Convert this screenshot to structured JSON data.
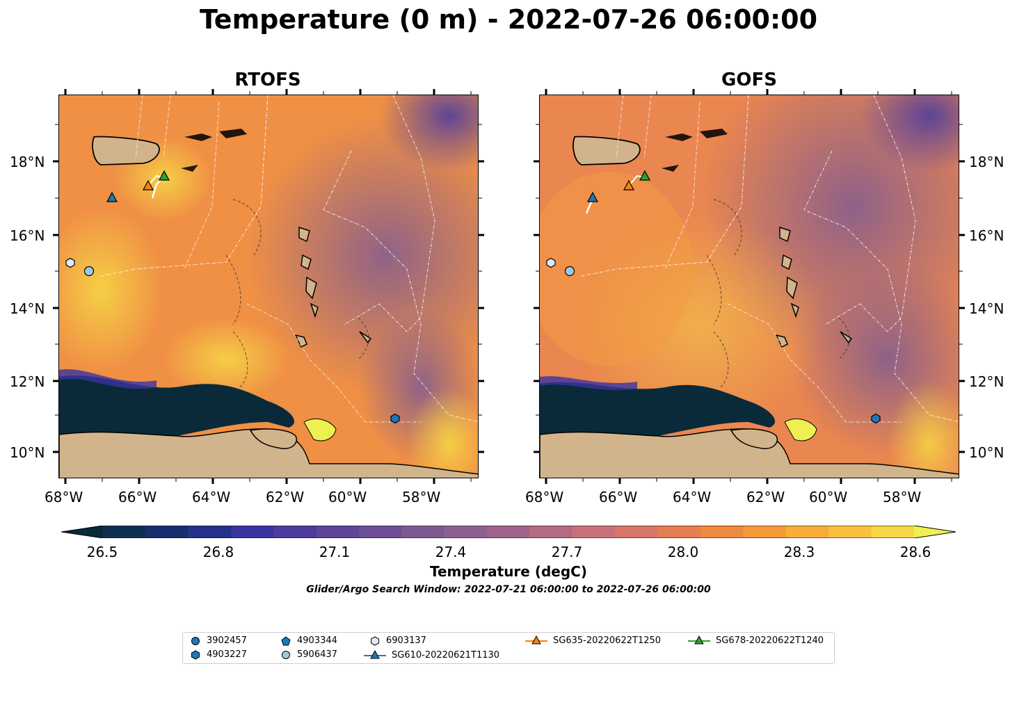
{
  "title": "Temperature (0 m) - 2022-07-26 06:00:00",
  "panels": [
    {
      "name": "RTOFS"
    },
    {
      "name": "GOFS"
    }
  ],
  "lat_labels": [
    "18°N",
    "16°N",
    "14°N",
    "12°N",
    "10°N"
  ],
  "lon_labels": [
    "68°W",
    "66°W",
    "64°W",
    "62°W",
    "60°W",
    "58°W"
  ],
  "colorbar": {
    "ticks": [
      "26.5",
      "26.8",
      "27.1",
      "27.4",
      "27.7",
      "28.0",
      "28.3",
      "28.6"
    ],
    "label": "Temperature (degC)",
    "colors": [
      "#0a2a3a",
      "#0f2f52",
      "#172f6e",
      "#25318a",
      "#3a33a0",
      "#4e3c9e",
      "#5e4598",
      "#6e5096",
      "#7e5a92",
      "#8e6090",
      "#a0648a",
      "#b46a82",
      "#c8707a",
      "#d87668",
      "#e67e52",
      "#ee8a40",
      "#f49a3a",
      "#f8ac3a",
      "#f9c040",
      "#f6d645",
      "#eef052"
    ]
  },
  "search_window": "Glider/Argo Search Window: 2022-07-21 06:00:00 to 2022-07-26 06:00:00",
  "legend": [
    {
      "label": "3902457",
      "marker": "circle",
      "color": "#1f77b4"
    },
    {
      "label": "4903227",
      "marker": "hexagon",
      "color": "#1f77b4"
    },
    {
      "label": "4903344",
      "marker": "pentagon",
      "color": "#1f77b4"
    },
    {
      "label": "5906437",
      "marker": "circle",
      "color": "#9ecae1"
    },
    {
      "label": "6903137",
      "marker": "hexagon",
      "color": "#deebf7"
    },
    {
      "label": "SG610-20220621T1130",
      "marker": "triangle",
      "color": "#1f77b4"
    },
    {
      "label": "SG635-20220622T1250",
      "marker": "triangle",
      "color": "#ff7f0e"
    },
    {
      "label": "SG678-20220622T1240",
      "marker": "triangle",
      "color": "#2ca02c"
    }
  ]
}
